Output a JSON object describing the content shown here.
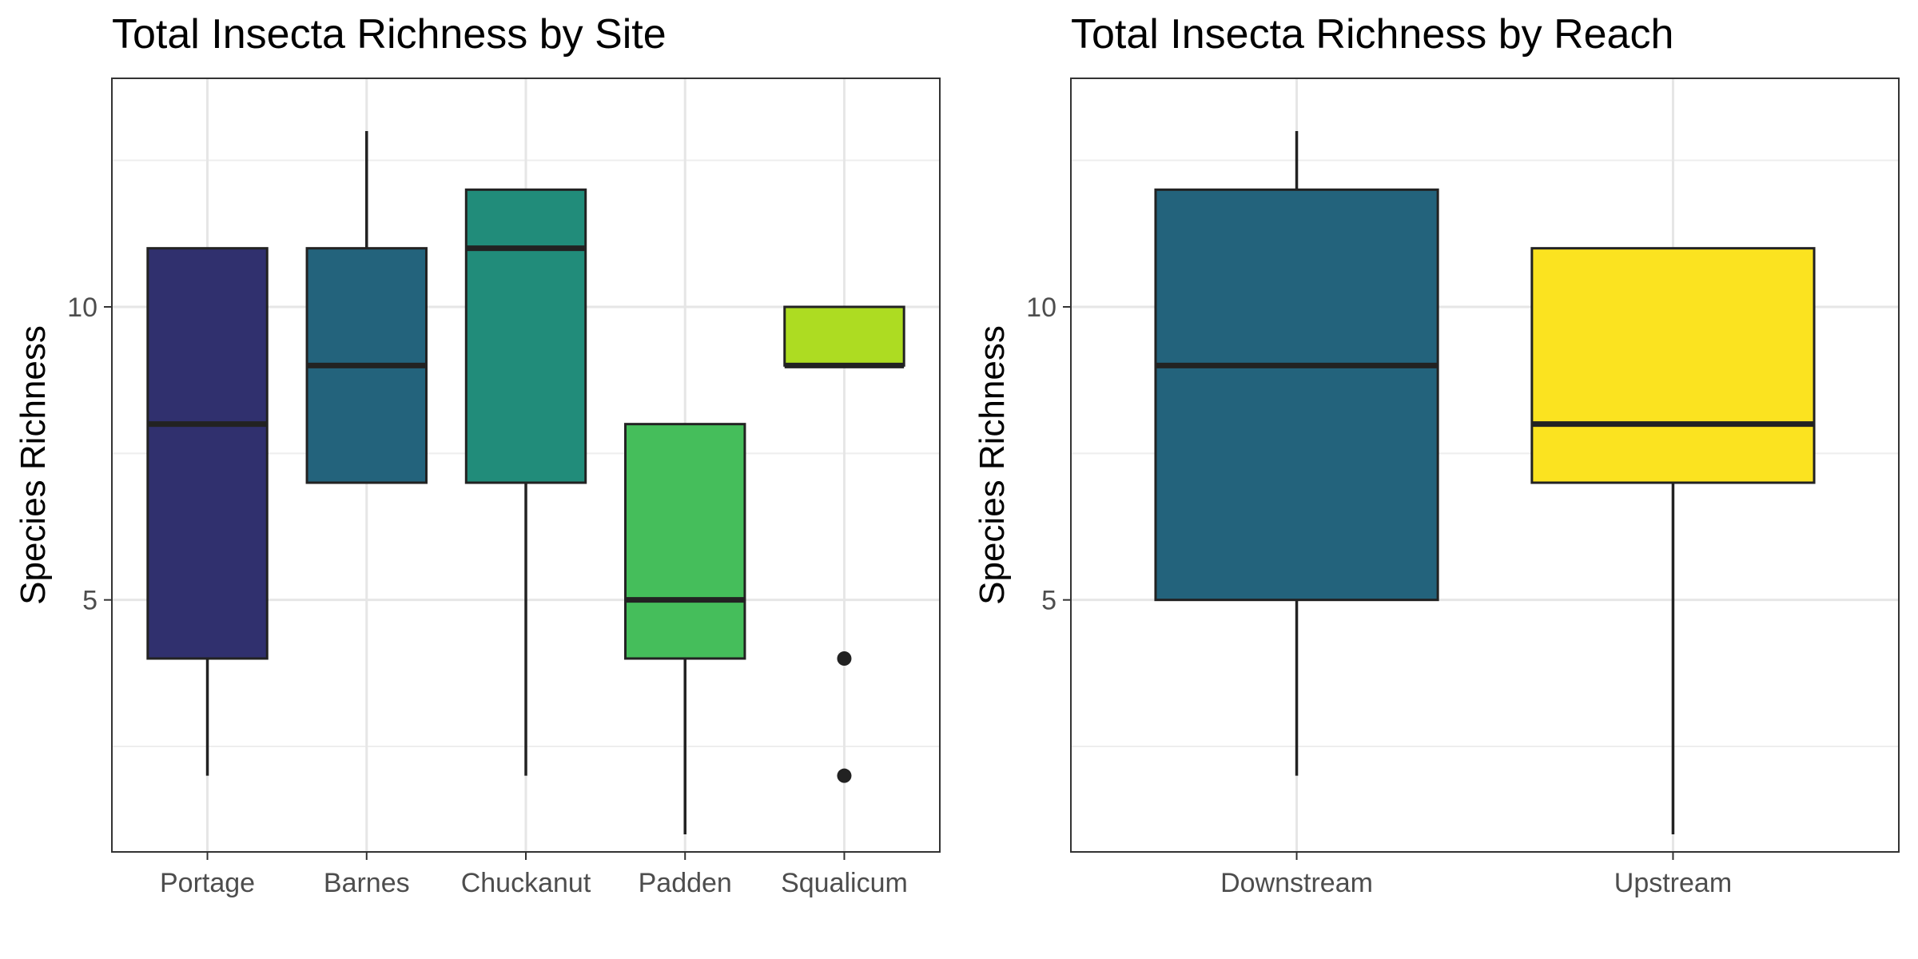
{
  "chart_data": [
    {
      "type": "boxplot",
      "title": "Total Insecta Richness by Site",
      "xlabel": "",
      "ylabel": "Species Richness",
      "ylim": [
        0.7,
        13.9
      ],
      "yticks": [
        5,
        10
      ],
      "y_minor_ticks": [
        2.5,
        7.5,
        12.5
      ],
      "grid": true,
      "legend": "none",
      "categories": [
        "Portage",
        "Barnes",
        "Chuckanut",
        "Padden",
        "Squalicum"
      ],
      "boxes": [
        {
          "category": "Portage",
          "min": 2,
          "q1": 4,
          "median": 8,
          "q3": 11,
          "max": 11,
          "color": "#30306e",
          "outliers": []
        },
        {
          "category": "Barnes",
          "min": 7,
          "q1": 7,
          "median": 9,
          "q3": 11,
          "max": 13,
          "color": "#23637c",
          "outliers": []
        },
        {
          "category": "Chuckanut",
          "min": 2,
          "q1": 7,
          "median": 11,
          "q3": 12,
          "max": 12,
          "color": "#218c7a",
          "outliers": []
        },
        {
          "category": "Padden",
          "min": 1,
          "q1": 4,
          "median": 5,
          "q3": 8,
          "max": 8,
          "color": "#45be5b",
          "outliers": []
        },
        {
          "category": "Squalicum",
          "min": 9,
          "q1": 9,
          "median": 9,
          "q3": 10,
          "max": 10,
          "color": "#addc22",
          "outliers": [
            4,
            2
          ]
        }
      ]
    },
    {
      "type": "boxplot",
      "title": "Total Insecta Richness by Reach",
      "xlabel": "",
      "ylabel": "Species Richness",
      "ylim": [
        0.7,
        13.9
      ],
      "yticks": [
        5,
        10
      ],
      "y_minor_ticks": [
        2.5,
        7.5,
        12.5
      ],
      "grid": true,
      "legend": "none",
      "categories": [
        "Downstream",
        "Upstream"
      ],
      "boxes": [
        {
          "category": "Downstream",
          "min": 2,
          "q1": 5,
          "median": 9,
          "q3": 12,
          "max": 13,
          "color": "#23637c",
          "outliers": []
        },
        {
          "category": "Upstream",
          "min": 1,
          "q1": 7,
          "median": 8,
          "q3": 11,
          "max": 11,
          "color": "#fbe320",
          "outliers": []
        }
      ]
    }
  ]
}
